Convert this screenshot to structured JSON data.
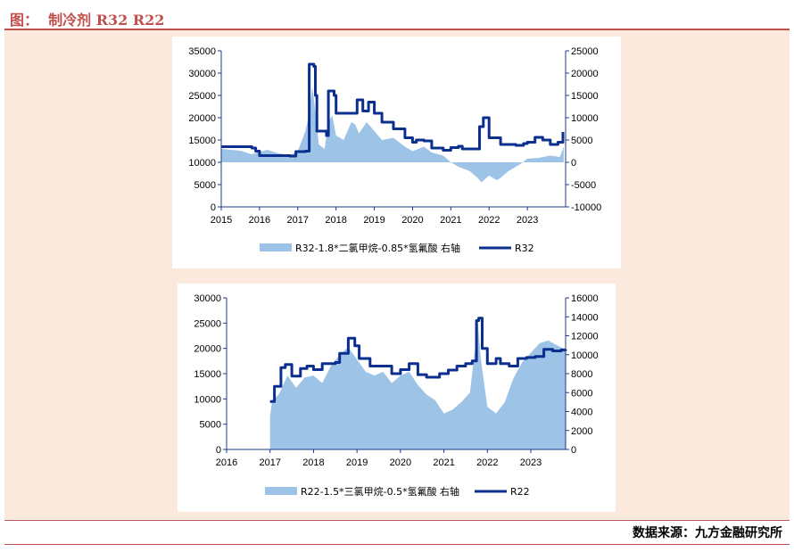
{
  "header": {
    "title": "图：  制冷剂 R32 R22"
  },
  "footer": {
    "source": "数据来源：九方金融研究所"
  },
  "colors": {
    "accent": "#c0504d",
    "panel": "#fbe9dd",
    "line": "#0b2f8f",
    "area": "#9dc3e6",
    "axis": "#1f3a8a"
  },
  "chart_data": [
    {
      "type": "area+line",
      "title": "",
      "x_ticks": [
        "2015",
        "2016",
        "2017",
        "2018",
        "2019",
        "2020",
        "2021",
        "2022",
        "2023"
      ],
      "xlim": [
        2015,
        2024
      ],
      "y_left_ticks": [
        "35000",
        "30000",
        "25000",
        "20000",
        "15000",
        "10000",
        "5000",
        "0"
      ],
      "ylim_left": [
        0,
        35000
      ],
      "y_right_ticks": [
        "25000",
        "20000",
        "15000",
        "10000",
        "5000",
        "0",
        "-5000",
        "-10000"
      ],
      "ylim_right": [
        -10000,
        25000
      ],
      "legend_position": "bottom",
      "series": [
        {
          "name": "R32-1.8*二氯甲烷-0.85*氢氟酸 右轴",
          "kind": "area",
          "axis": "right",
          "points": [
            [
              2015.0,
              3000
            ],
            [
              2015.5,
              2600
            ],
            [
              2015.8,
              1800
            ],
            [
              2016.2,
              2800
            ],
            [
              2016.5,
              2000
            ],
            [
              2016.8,
              1600
            ],
            [
              2017.0,
              2500
            ],
            [
              2017.2,
              7000
            ],
            [
              2017.3,
              11000
            ],
            [
              2017.38,
              17000
            ],
            [
              2017.45,
              12000
            ],
            [
              2017.55,
              4000
            ],
            [
              2017.7,
              3000
            ],
            [
              2017.8,
              9000
            ],
            [
              2017.9,
              10500
            ],
            [
              2018.0,
              6000
            ],
            [
              2018.2,
              5000
            ],
            [
              2018.4,
              9000
            ],
            [
              2018.5,
              8500
            ],
            [
              2018.6,
              6500
            ],
            [
              2018.8,
              9000
            ],
            [
              2019.0,
              7000
            ],
            [
              2019.2,
              5000
            ],
            [
              2019.5,
              5500
            ],
            [
              2019.8,
              3500
            ],
            [
              2020.0,
              2500
            ],
            [
              2020.3,
              3500
            ],
            [
              2020.5,
              2200
            ],
            [
              2020.8,
              1500
            ],
            [
              2021.0,
              0
            ],
            [
              2021.2,
              -1000
            ],
            [
              2021.5,
              -2000
            ],
            [
              2021.7,
              -3500
            ],
            [
              2021.8,
              -4500
            ],
            [
              2022.0,
              -3000
            ],
            [
              2022.2,
              -4000
            ],
            [
              2022.3,
              -3500
            ],
            [
              2022.5,
              -2000
            ],
            [
              2022.8,
              -500
            ],
            [
              2023.0,
              800
            ],
            [
              2023.3,
              1000
            ],
            [
              2023.6,
              1500
            ],
            [
              2023.85,
              1200
            ],
            [
              2023.95,
              3500
            ]
          ]
        },
        {
          "name": "R32",
          "kind": "line",
          "axis": "left",
          "points": [
            [
              2015.0,
              13500
            ],
            [
              2015.8,
              13200
            ],
            [
              2015.9,
              12500
            ],
            [
              2016.0,
              11500
            ],
            [
              2016.8,
              11400
            ],
            [
              2016.95,
              12400
            ],
            [
              2017.2,
              12500
            ],
            [
              2017.3,
              32000
            ],
            [
              2017.42,
              31500
            ],
            [
              2017.46,
              25000
            ],
            [
              2017.5,
              17000
            ],
            [
              2017.75,
              16000
            ],
            [
              2017.8,
              26000
            ],
            [
              2017.95,
              25000
            ],
            [
              2018.0,
              21000
            ],
            [
              2018.5,
              21000
            ],
            [
              2018.55,
              24000
            ],
            [
              2018.7,
              21500
            ],
            [
              2018.85,
              23500
            ],
            [
              2019.0,
              21000
            ],
            [
              2019.2,
              19000
            ],
            [
              2019.5,
              17500
            ],
            [
              2019.8,
              15500
            ],
            [
              2020.0,
              14500
            ],
            [
              2020.1,
              15000
            ],
            [
              2020.3,
              14800
            ],
            [
              2020.5,
              13200
            ],
            [
              2020.8,
              12700
            ],
            [
              2021.0,
              13300
            ],
            [
              2021.2,
              13600
            ],
            [
              2021.3,
              13000
            ],
            [
              2021.6,
              13000
            ],
            [
              2021.75,
              18000
            ],
            [
              2021.85,
              20000
            ],
            [
              2022.0,
              15500
            ],
            [
              2022.3,
              14000
            ],
            [
              2022.7,
              13800
            ],
            [
              2022.9,
              14200
            ],
            [
              2023.0,
              14500
            ],
            [
              2023.2,
              15600
            ],
            [
              2023.4,
              15000
            ],
            [
              2023.6,
              14000
            ],
            [
              2023.8,
              14500
            ],
            [
              2023.93,
              16800
            ]
          ]
        }
      ]
    },
    {
      "type": "area+line",
      "title": "",
      "x_ticks": [
        "2016",
        "2017",
        "2018",
        "2019",
        "2020",
        "2021",
        "2022",
        "2023"
      ],
      "xlim": [
        2016,
        2023.8
      ],
      "y_left_ticks": [
        "30000",
        "25000",
        "20000",
        "15000",
        "10000",
        "5000",
        "0"
      ],
      "ylim_left": [
        0,
        30000
      ],
      "y_right_ticks": [
        "16000",
        "14000",
        "12000",
        "10000",
        "8000",
        "6000",
        "4000",
        "2000",
        "0"
      ],
      "ylim_right": [
        0,
        16000
      ],
      "legend_position": "bottom",
      "series": [
        {
          "name": "R22-1.5*三氯甲烷-0.5*氢氟酸 右轴",
          "kind": "area",
          "axis": "right",
          "points": [
            [
              2017.0,
              3500
            ],
            [
              2017.05,
              5200
            ],
            [
              2017.2,
              5800
            ],
            [
              2017.4,
              7800
            ],
            [
              2017.6,
              6500
            ],
            [
              2017.8,
              7600
            ],
            [
              2018.0,
              7800
            ],
            [
              2018.2,
              7000
            ],
            [
              2018.4,
              8800
            ],
            [
              2018.6,
              10000
            ],
            [
              2018.8,
              10800
            ],
            [
              2019.0,
              9500
            ],
            [
              2019.2,
              8200
            ],
            [
              2019.4,
              7800
            ],
            [
              2019.6,
              8200
            ],
            [
              2019.8,
              7000
            ],
            [
              2020.0,
              7800
            ],
            [
              2020.2,
              8200
            ],
            [
              2020.4,
              6800
            ],
            [
              2020.6,
              5800
            ],
            [
              2020.8,
              5200
            ],
            [
              2021.0,
              3800
            ],
            [
              2021.2,
              4200
            ],
            [
              2021.4,
              5000
            ],
            [
              2021.6,
              6000
            ],
            [
              2021.7,
              10000
            ],
            [
              2021.78,
              13500
            ],
            [
              2021.85,
              9500
            ],
            [
              2022.0,
              4500
            ],
            [
              2022.2,
              3800
            ],
            [
              2022.4,
              5000
            ],
            [
              2022.6,
              7500
            ],
            [
              2022.8,
              9200
            ],
            [
              2023.0,
              10200
            ],
            [
              2023.2,
              11200
            ],
            [
              2023.4,
              11500
            ],
            [
              2023.6,
              11000
            ],
            [
              2023.8,
              10500
            ]
          ]
        },
        {
          "name": "R22",
          "kind": "line",
          "axis": "left",
          "points": [
            [
              2017.0,
              9500
            ],
            [
              2017.1,
              12500
            ],
            [
              2017.25,
              16200
            ],
            [
              2017.35,
              16800
            ],
            [
              2017.5,
              14500
            ],
            [
              2017.7,
              16000
            ],
            [
              2017.85,
              16500
            ],
            [
              2018.0,
              15800
            ],
            [
              2018.2,
              17000
            ],
            [
              2018.5,
              17200
            ],
            [
              2018.6,
              19000
            ],
            [
              2018.8,
              22000
            ],
            [
              2018.95,
              20500
            ],
            [
              2019.05,
              18000
            ],
            [
              2019.3,
              16500
            ],
            [
              2019.6,
              16500
            ],
            [
              2019.8,
              15000
            ],
            [
              2020.0,
              15800
            ],
            [
              2020.2,
              17000
            ],
            [
              2020.4,
              14800
            ],
            [
              2020.6,
              14300
            ],
            [
              2020.9,
              15000
            ],
            [
              2021.1,
              15700
            ],
            [
              2021.3,
              16500
            ],
            [
              2021.5,
              17000
            ],
            [
              2021.65,
              17500
            ],
            [
              2021.75,
              25500
            ],
            [
              2021.8,
              26000
            ],
            [
              2021.88,
              20000
            ],
            [
              2022.0,
              17000
            ],
            [
              2022.2,
              18000
            ],
            [
              2022.3,
              17000
            ],
            [
              2022.5,
              16500
            ],
            [
              2022.7,
              18000
            ],
            [
              2022.9,
              18200
            ],
            [
              2023.1,
              18400
            ],
            [
              2023.3,
              19800
            ],
            [
              2023.5,
              19500
            ],
            [
              2023.7,
              19700
            ],
            [
              2023.8,
              19800
            ]
          ]
        }
      ]
    }
  ]
}
